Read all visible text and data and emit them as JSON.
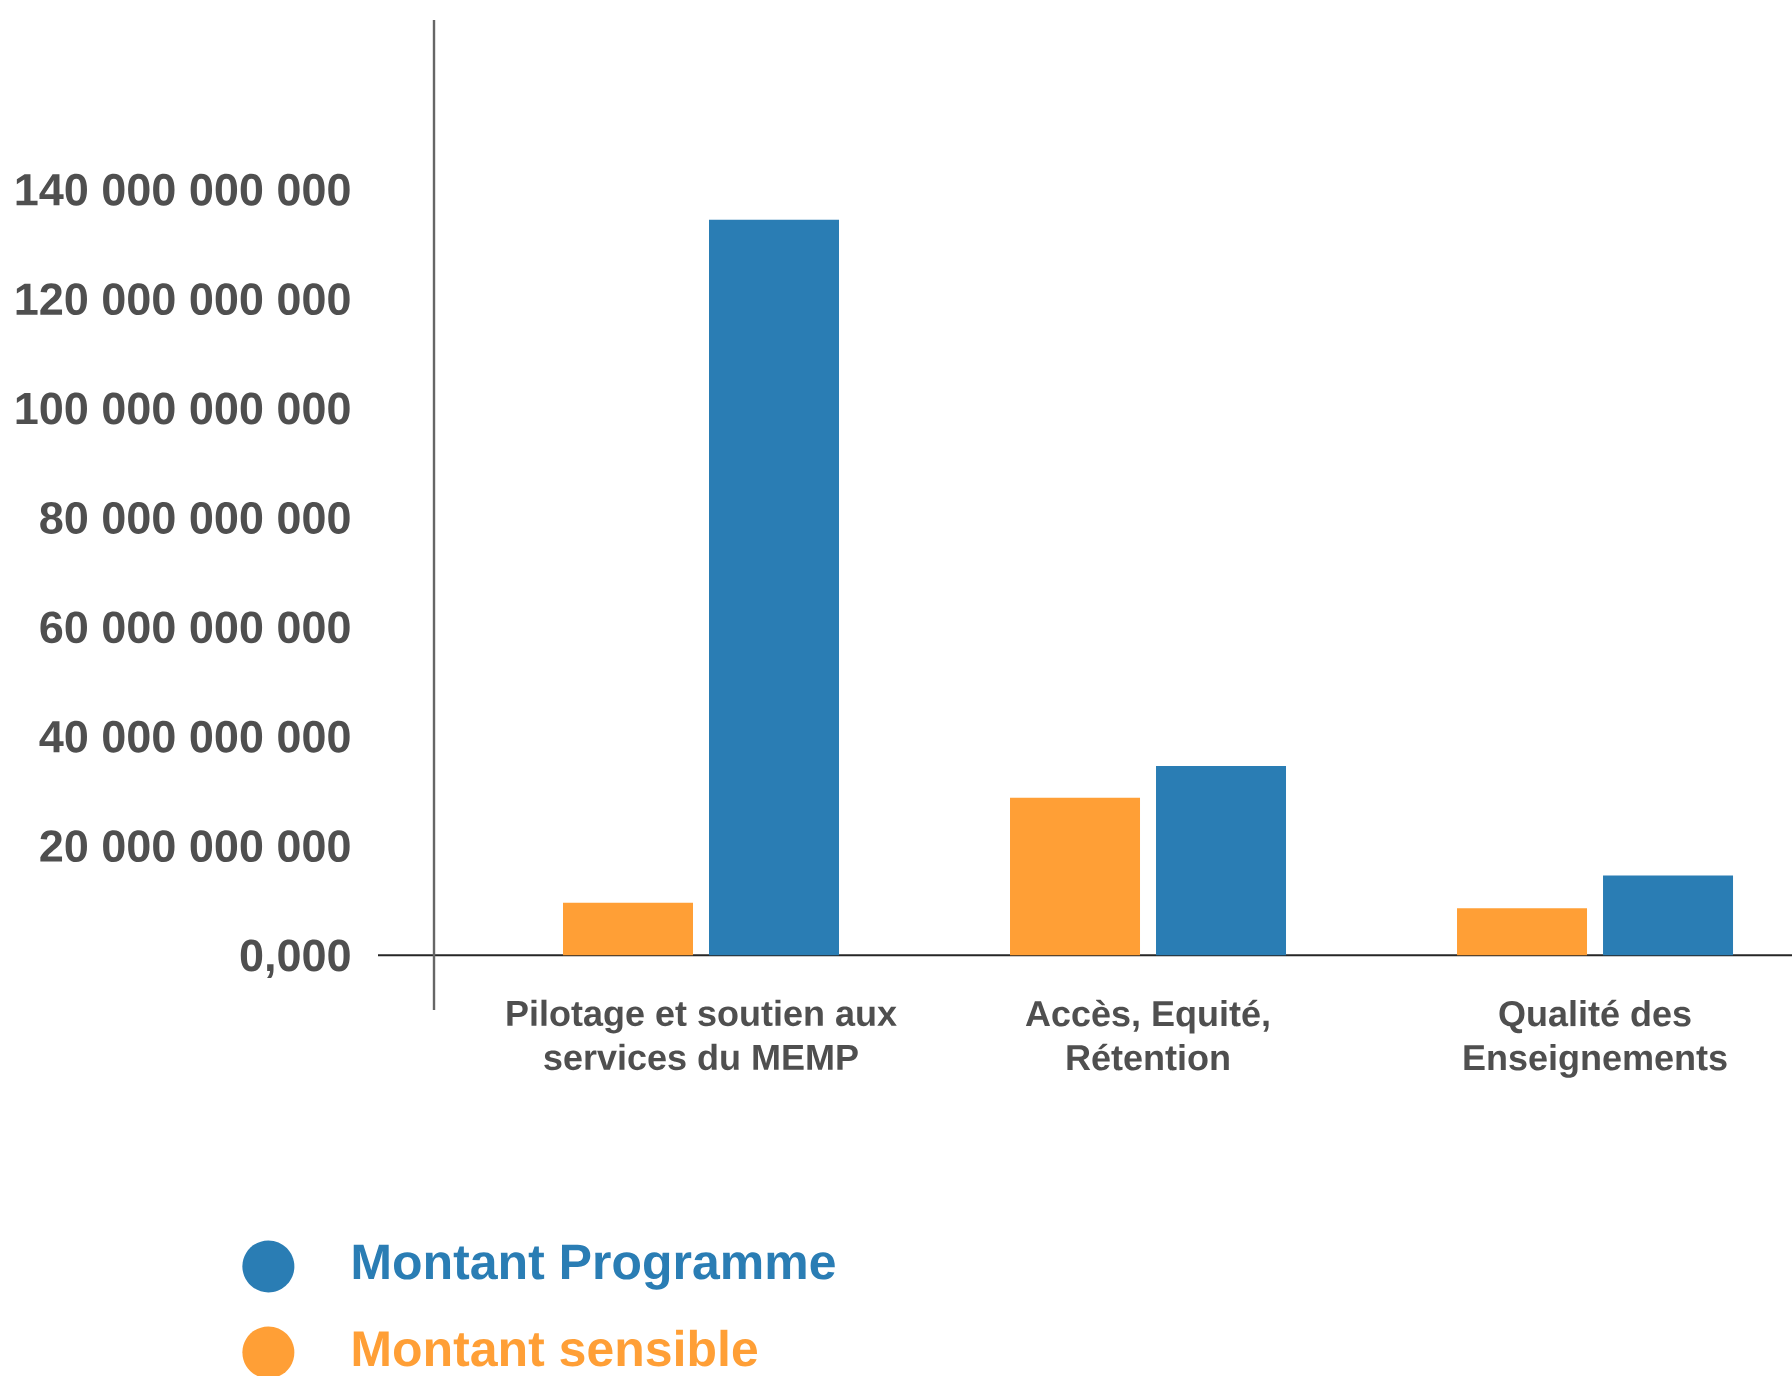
{
  "chart_data": {
    "type": "bar",
    "categories": [
      "Pilotage et soutien aux services du MEMP",
      "Accès, Equité, Rétention",
      "Qualité des Enseignements"
    ],
    "series": [
      {
        "name": "Montant sensible",
        "color": "#ff9f36",
        "values": [
          9600000000,
          28800000000,
          8600000000
        ]
      },
      {
        "name": "Montant Programme",
        "color": "#2a7db4",
        "values": [
          134500000000,
          34600000000,
          14600000000
        ]
      }
    ],
    "ylim": [
      -10000000000,
      171000000000
    ],
    "yticks": [
      {
        "value": 0,
        "label": "0,000"
      },
      {
        "value": 20000000000,
        "label": "20 000 000 000"
      },
      {
        "value": 40000000000,
        "label": "40 000 000 000"
      },
      {
        "value": 60000000000,
        "label": "60 000 000 000"
      },
      {
        "value": 80000000000,
        "label": "80 000 000 000"
      },
      {
        "value": 100000000000,
        "label": "100 000 000 000"
      },
      {
        "value": 120000000000,
        "label": "120 000 000 000"
      },
      {
        "value": 140000000000,
        "label": "140 000 000 000"
      }
    ],
    "legend": "bottom left"
  }
}
